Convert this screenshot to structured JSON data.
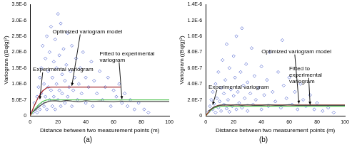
{
  "chart_data": [
    {
      "type": "scatter",
      "title": "(a)",
      "x_label": "Distance between two measurement points (m)",
      "y_label": "Variogram ((Bq/g)²)",
      "xlim": [
        0,
        100
      ],
      "xticks": [
        0,
        20,
        40,
        60,
        80,
        100
      ],
      "ylim": [
        0,
        3.5e-06
      ],
      "yticks": [
        0,
        {
          "value": 5e-07,
          "label": "5.0E-7"
        },
        {
          "value": 1e-06,
          "label": "1.0E-6"
        },
        {
          "value": 1.5e-06,
          "label": "1.5E-6"
        },
        {
          "value": 2e-06,
          "label": "2.0E-6"
        },
        {
          "value": 2.5e-06,
          "label": "2.5E-6"
        },
        {
          "value": 3e-06,
          "label": "3.0E-6"
        },
        {
          "value": 3.5e-06,
          "label": "3.5E-6"
        }
      ],
      "grid": false,
      "series": [
        {
          "type": "scatter",
          "marker": "diamond",
          "color": "#5468d0",
          "x": [
            2,
            3,
            4,
            5,
            5,
            6,
            6,
            7,
            7,
            8,
            8,
            9,
            9,
            10,
            10,
            11,
            11,
            12,
            12,
            13,
            13,
            14,
            14,
            15,
            15,
            16,
            16,
            17,
            17,
            18,
            18,
            19,
            19,
            20,
            20,
            21,
            21,
            22,
            22,
            23,
            23,
            24,
            25,
            25,
            26,
            27,
            27,
            28,
            29,
            30,
            30,
            31,
            32,
            33,
            34,
            35,
            36,
            37,
            38,
            40,
            40,
            42,
            44,
            45,
            46,
            48,
            50,
            52,
            54,
            56,
            58,
            60,
            62,
            64,
            66,
            68,
            70,
            72,
            75,
            78,
            82,
            85
          ],
          "values": [
            1e-07,
            4e-07,
            2e-07,
            6e-07,
            1e-07,
            9e-07,
            3e-07,
            1.2e-06,
            2e-07,
            7e-07,
            1.5e-06,
            4e-07,
            2.2e-06,
            1e-06,
            3e-07,
            1.8e-06,
            6e-07,
            2.5e-06,
            2e-07,
            9e-07,
            1.4e-06,
            5e-07,
            2e-06,
            2.8e-06,
            8e-07,
            3e-07,
            1.2e-06,
            1.7e-06,
            6e-07,
            2.4e-06,
            2e-07,
            1e-06,
            1.5e-06,
            3.2e-06,
            5e-07,
            8e-07,
            1.9e-06,
            2.9e-06,
            3e-07,
            1.3e-06,
            7e-07,
            2.1e-06,
            4e-07,
            1.1e-06,
            1.6e-06,
            2.6e-06,
            6e-07,
            9e-07,
            1.4e-06,
            2.2e-06,
            3e-07,
            8e-07,
            1.2e-06,
            1.8e-06,
            5e-07,
            1e-06,
            1.5e-06,
            7e-07,
            2e-06,
            4e-07,
            1.2e-06,
            9e-07,
            1.7e-06,
            3e-07,
            1.1e-06,
            7e-07,
            1.4e-06,
            5e-07,
            9e-07,
            1.2e-06,
            3e-07,
            8e-07,
            6e-07,
            1e-06,
            4e-07,
            7e-07,
            3e-07,
            5e-07,
            2e-07,
            4e-07,
            2e-07,
            1e-07
          ]
        },
        {
          "name": "Experimental variogram",
          "type": "line",
          "color": "#4a4a4a",
          "x": [
            2,
            6,
            10,
            14,
            18,
            22,
            26,
            30,
            35,
            40,
            45,
            50,
            55,
            60,
            65,
            70,
            80,
            90,
            100
          ],
          "values": [
            1.2e-07,
            2.8e-07,
            4e-07,
            4.6e-07,
            4.7e-07,
            4.5e-07,
            4.8e-07,
            4.6e-07,
            4.4e-07,
            4.7e-07,
            4.5e-07,
            4.6e-07,
            4.5e-07,
            4.4e-07,
            4.6e-07,
            4.5e-07,
            4.5e-07,
            4.5e-07,
            4.5e-07
          ]
        },
        {
          "name": "Optimized variogram model",
          "type": "line",
          "color": "#a3282d",
          "x": [
            0,
            3,
            6,
            9,
            12,
            15,
            65
          ],
          "values": [
            0,
            3.2e-07,
            5.9e-07,
            7.8e-07,
            8.8e-07,
            9e-07,
            9e-07
          ]
        },
        {
          "name": "Fitted to experimental variogram",
          "type": "line",
          "color": "#5cc85c",
          "x": [
            0,
            3,
            6,
            9,
            12,
            100
          ],
          "values": [
            0,
            1.8e-07,
            3.4e-07,
            4.5e-07,
            5e-07,
            5e-07
          ]
        }
      ]
    },
    {
      "type": "scatter",
      "title": "(b)",
      "x_label": "Distance between two measurement points (m)",
      "y_label": "Variogram ((Bq/g)²)",
      "xlim": [
        0,
        100
      ],
      "xticks": [
        0,
        20,
        40,
        60,
        80,
        100
      ],
      "ylim": [
        0,
        1.4e-06
      ],
      "yticks": [
        0,
        {
          "value": 2e-07,
          "label": "2.0E-7"
        },
        {
          "value": 4e-07,
          "label": "4.0E-7"
        },
        {
          "value": 6e-07,
          "label": "6.0E-7"
        },
        {
          "value": 8e-07,
          "label": "8.0E-7"
        },
        {
          "value": 1e-06,
          "label": "1.0E-6"
        },
        {
          "value": 1.2e-06,
          "label": "1.2E-6"
        },
        {
          "value": 1.4e-06,
          "label": "1.4E-6"
        }
      ],
      "grid": false,
      "series": [
        {
          "type": "scatter",
          "marker": "diamond",
          "color": "#5468d0",
          "x": [
            2,
            3,
            4,
            5,
            5,
            6,
            7,
            7,
            8,
            9,
            9,
            10,
            11,
            11,
            12,
            13,
            13,
            14,
            15,
            15,
            16,
            17,
            17,
            18,
            19,
            20,
            20,
            21,
            22,
            22,
            23,
            24,
            25,
            26,
            26,
            27,
            28,
            29,
            30,
            30,
            32,
            33,
            34,
            35,
            36,
            38,
            40,
            40,
            42,
            44,
            45,
            46,
            48,
            50,
            52,
            54,
            55,
            56,
            58,
            60,
            62,
            64,
            66,
            68,
            70,
            72,
            75,
            78,
            80,
            84,
            88,
            92
          ],
          "values": [
            5e-08,
            1.2e-07,
            2e-07,
            8e-08,
            3e-07,
            1.5e-07,
            4e-07,
            4e-08,
            2.2e-07,
            1e-07,
            5.5e-07,
            1.8e-07,
            6e-08,
            3.5e-07,
            7e-07,
            1.4e-07,
            2.8e-07,
            4.5e-07,
            9e-08,
            9e-07,
            2e-07,
            6e-07,
            5e-08,
            3.3e-07,
            1.2e-07,
            7.5e-07,
            2.5e-07,
            4.8e-07,
            8e-08,
            1e-06,
            3e-07,
            1.6e-07,
            5.5e-07,
            1.1e-06,
            1e-07,
            3.8e-07,
            2.2e-07,
            6.5e-07,
            6e-08,
            4.2e-07,
            2.8e-07,
            8.5e-07,
            1.4e-07,
            5e-07,
            2e-07,
            3.5e-07,
            8e-08,
            6.2e-07,
            2.6e-07,
            4.5e-07,
            1.2e-07,
            8e-07,
            3e-07,
            1.8e-07,
            5.5e-07,
            1e-07,
            9.5e-07,
            3.8e-07,
            2.2e-07,
            4.8e-07,
            1.4e-07,
            3e-07,
            8e-08,
            4e-07,
            2e-07,
            1.2e-07,
            2.6e-07,
            8e-08,
            1.6e-07,
            6e-08,
            1e-07,
            4e-08
          ]
        },
        {
          "name": "Experimental variogram",
          "type": "line",
          "color": "#4a4a4a",
          "x": [
            2,
            6,
            10,
            14,
            18,
            22,
            26,
            30,
            35,
            40,
            45,
            50,
            55,
            60,
            65,
            70,
            80,
            90,
            100
          ],
          "values": [
            6e-08,
            1.1e-07,
            1.3e-07,
            1.4e-07,
            1.3e-07,
            1.4e-07,
            1.3e-07,
            1.4e-07,
            1.3e-07,
            1.3e-07,
            1.4e-07,
            1.3e-07,
            1.3e-07,
            1.4e-07,
            1.3e-07,
            1.3e-07,
            1.3e-07,
            1.3e-07,
            1.3e-07
          ]
        },
        {
          "name": "Optimized variogram model",
          "type": "line",
          "color": "#9e3a26",
          "x": [
            0,
            3,
            6,
            9,
            12,
            100
          ],
          "values": [
            0,
            7e-08,
            1.1e-07,
            1.3e-07,
            1.35e-07,
            1.35e-07
          ]
        },
        {
          "name": "Fitted to experimental variogram",
          "type": "line",
          "color": "#5cc85c",
          "x": [
            0,
            3,
            6,
            9,
            12,
            100
          ],
          "values": [
            0,
            6e-08,
            1e-07,
            1.15e-07,
            1.2e-07,
            1.2e-07
          ]
        }
      ]
    }
  ]
}
